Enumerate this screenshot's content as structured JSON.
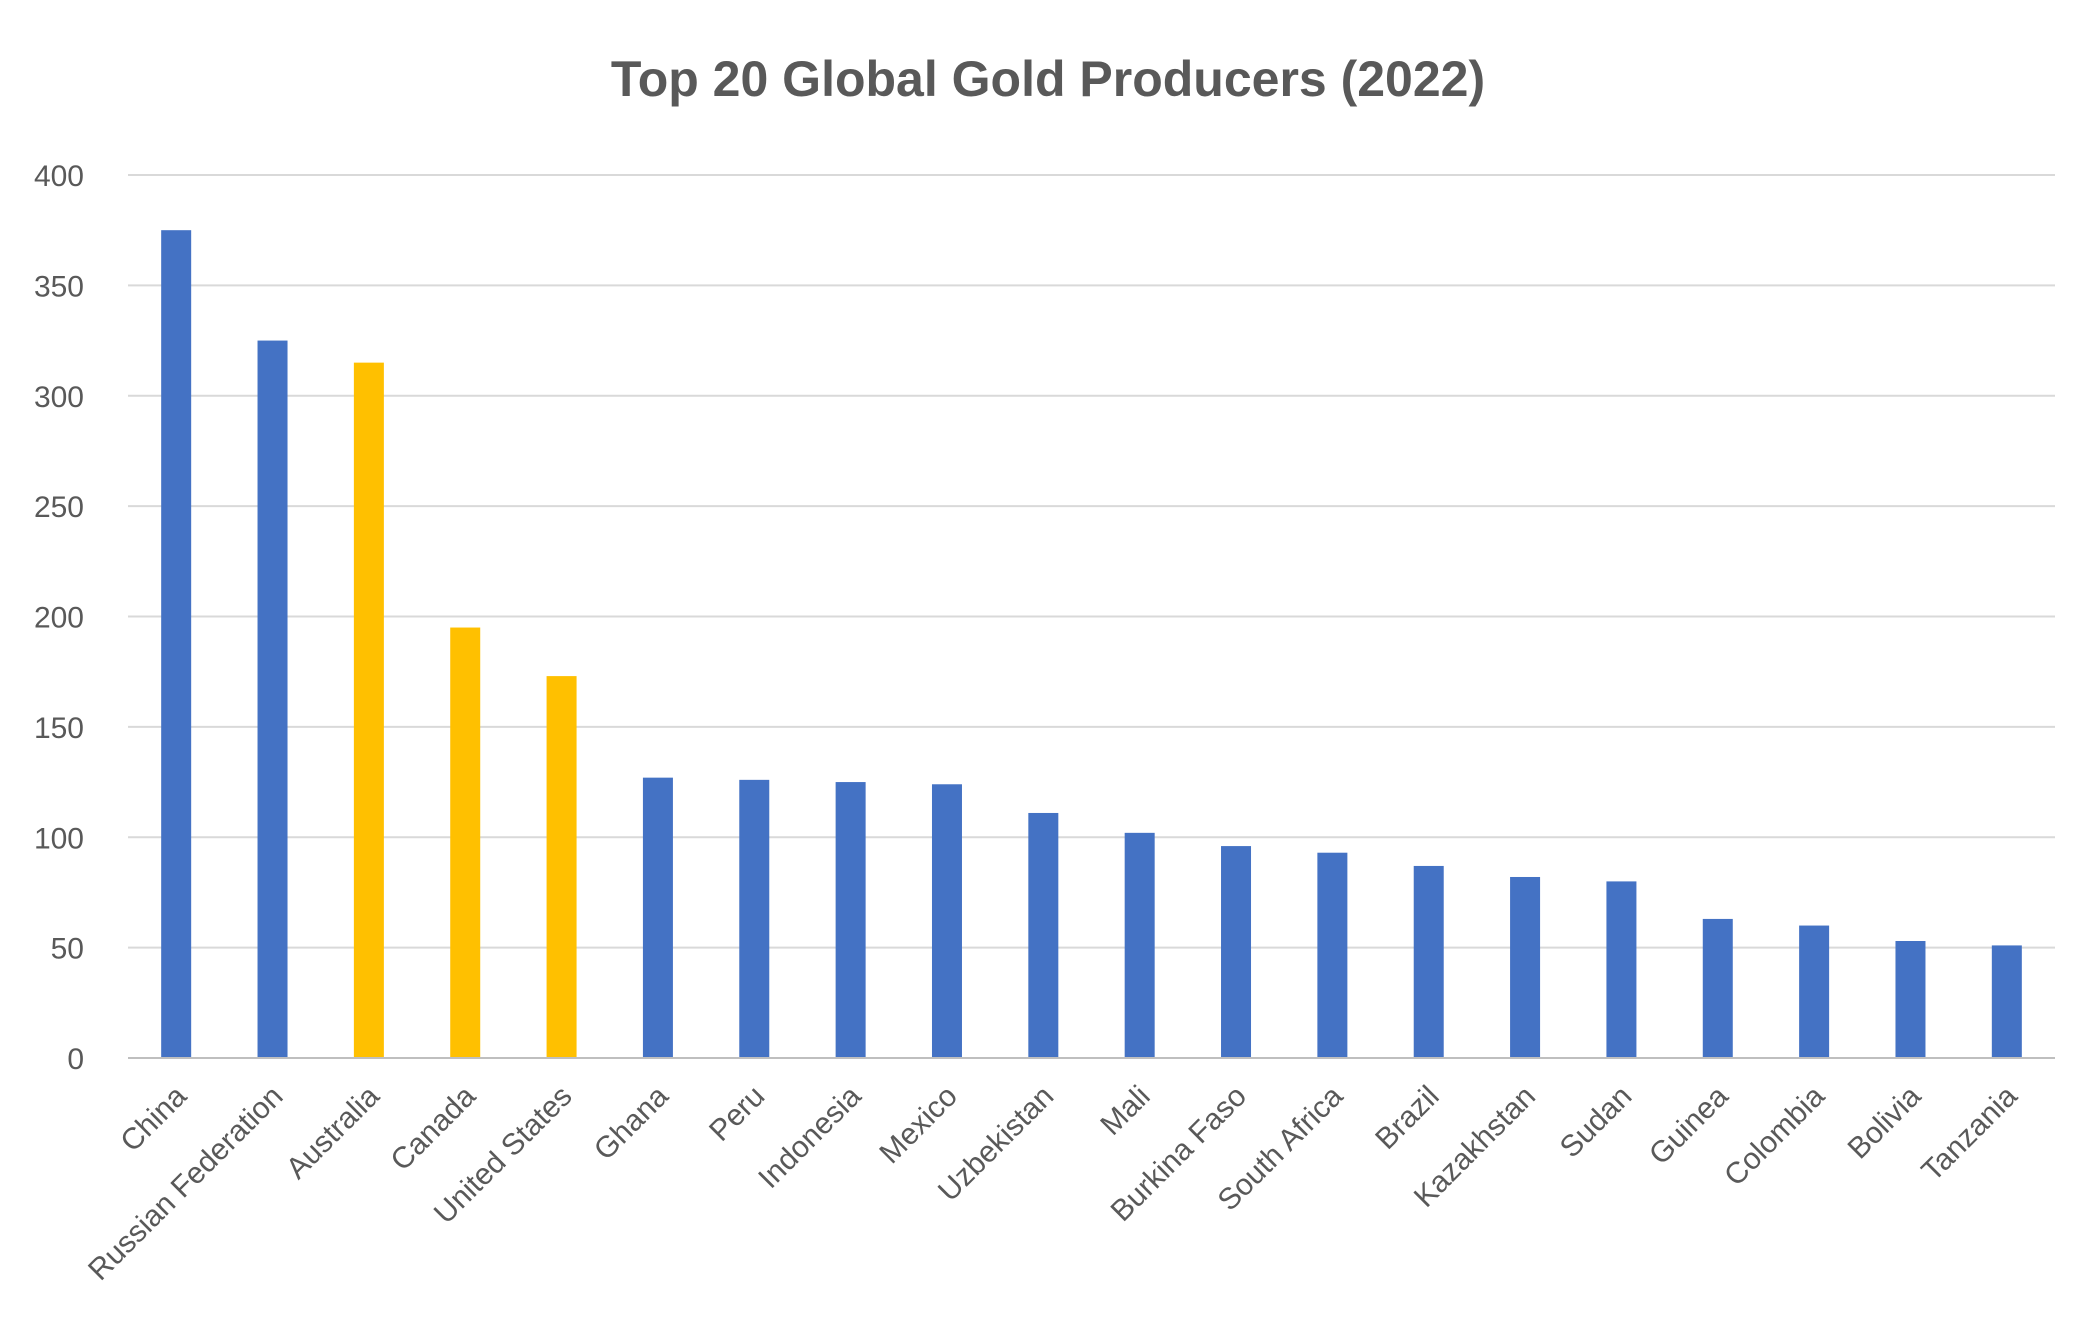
{
  "chart_data": {
    "type": "bar",
    "title": "Top 20 Global Gold Producers (2022)",
    "xlabel": "",
    "ylabel": "",
    "ylim": [
      0,
      400
    ],
    "yticks": [
      0,
      50,
      100,
      150,
      200,
      250,
      300,
      350,
      400
    ],
    "grid": true,
    "categories": [
      "China",
      "Russian Federation",
      "Australia",
      "Canada",
      "United States",
      "Ghana",
      "Peru",
      "Indonesia",
      "Mexico",
      "Uzbekistan",
      "Mali",
      "Burkina Faso",
      "South Africa",
      "Brazil",
      "Kazakhstan",
      "Sudan",
      "Guinea",
      "Colombia",
      "Bolivia",
      "Tanzania"
    ],
    "values": [
      375,
      325,
      315,
      195,
      173,
      127,
      126,
      125,
      124,
      111,
      102,
      96,
      93,
      87,
      82,
      80,
      63,
      60,
      53,
      51
    ],
    "highlighted": [
      "Australia",
      "Canada",
      "United States"
    ],
    "colors": {
      "default": "#4472C4",
      "highlight": "#FFC000"
    }
  }
}
